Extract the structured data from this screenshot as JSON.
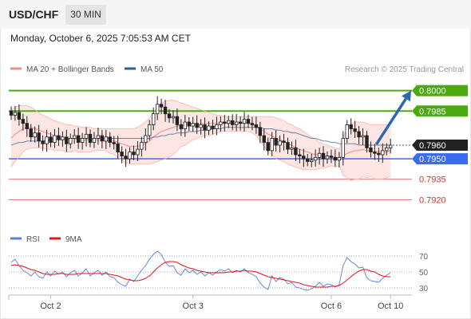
{
  "header": {
    "symbol": "USD/CHF",
    "timeframe": "30 MIN",
    "datetime": "Monday, October 6, 2025 7:05:53 AM CET"
  },
  "legend": {
    "bollinger_label": "MA 20 + Bollinger Bands",
    "ma50_label": "MA 50",
    "credit": "Research © 2025 Trading Central",
    "bollinger_color": "#f08c84",
    "ma50_color": "#2f5b93"
  },
  "rsi_legend": {
    "rsi_label": "RSI",
    "ma9_label": "9MA",
    "rsi_color": "#5b7fd6",
    "ma9_color": "#e0151d"
  },
  "chart_data": {
    "type": "candlestick",
    "ylim": [
      0.7905,
      0.8008
    ],
    "levels": [
      {
        "label": "0.8000",
        "value": 0.8,
        "kind": "target",
        "color": "#4caa10"
      },
      {
        "label": "0.7985",
        "value": 0.7985,
        "kind": "target",
        "color": "#4caa10"
      },
      {
        "label": "0.7960",
        "value": 0.796,
        "kind": "current",
        "color": "#222222"
      },
      {
        "label": "0.7950",
        "value": 0.795,
        "kind": "pivot",
        "color": "#3a6cf0"
      },
      {
        "label": "0.7935",
        "value": 0.7935,
        "kind": "support",
        "color": "#d83030"
      },
      {
        "label": "0.7920",
        "value": 0.792,
        "kind": "support",
        "color": "#d83030"
      }
    ],
    "x_ticks": [
      "Oct 2",
      "Oct 3",
      "Oct 6",
      "Oct 10"
    ],
    "x_tick_index": [
      10,
      46,
      81,
      96
    ],
    "forecast_arrow": {
      "from_index": 92,
      "from_value": 0.796,
      "to_index": 100,
      "to_value": 0.8
    },
    "closes": [
      0.7982,
      0.7984,
      0.7979,
      0.7976,
      0.7972,
      0.7966,
      0.7969,
      0.7963,
      0.7961,
      0.7966,
      0.7962,
      0.7967,
      0.7964,
      0.7966,
      0.7961,
      0.7965,
      0.7967,
      0.7962,
      0.7965,
      0.7968,
      0.7962,
      0.7965,
      0.7967,
      0.7963,
      0.7966,
      0.7962,
      0.7961,
      0.7955,
      0.7952,
      0.795,
      0.7955,
      0.7953,
      0.7957,
      0.7962,
      0.7967,
      0.7975,
      0.7983,
      0.799,
      0.7988,
      0.7983,
      0.798,
      0.7981,
      0.7975,
      0.7972,
      0.7977,
      0.7974,
      0.7976,
      0.7973,
      0.7975,
      0.7971,
      0.7974,
      0.7972,
      0.7975,
      0.7977,
      0.7976,
      0.7978,
      0.7975,
      0.7977,
      0.7976,
      0.7979,
      0.7976,
      0.7975,
      0.7973,
      0.7967,
      0.7962,
      0.7956,
      0.7965,
      0.796,
      0.7963,
      0.7962,
      0.7957,
      0.7958,
      0.7953,
      0.7952,
      0.795,
      0.7948,
      0.7949,
      0.7951,
      0.7954,
      0.795,
      0.7952,
      0.7951,
      0.7949,
      0.7951,
      0.7965,
      0.7975,
      0.7972,
      0.797,
      0.7966,
      0.7967,
      0.7958,
      0.7955,
      0.7954,
      0.7953,
      0.7956,
      0.7958,
      0.796
    ],
    "ma20": [
      0.7965,
      0.7968,
      0.797,
      0.7972,
      0.7973,
      0.7973,
      0.7972,
      0.7971,
      0.797,
      0.7969,
      0.7968,
      0.7967,
      0.7966,
      0.7966,
      0.7965,
      0.7965,
      0.7965,
      0.7964,
      0.7964,
      0.7964,
      0.7964,
      0.7964,
      0.7964,
      0.7964,
      0.7964,
      0.7963,
      0.7963,
      0.7962,
      0.7961,
      0.796,
      0.7959,
      0.7959,
      0.7959,
      0.796,
      0.7961,
      0.7963,
      0.7966,
      0.7968,
      0.797,
      0.7971,
      0.7972,
      0.7973,
      0.7974,
      0.7975,
      0.7975,
      0.7976,
      0.7976,
      0.7976,
      0.7976,
      0.7976,
      0.7976,
      0.7976,
      0.7976,
      0.7976,
      0.7976,
      0.7976,
      0.7976,
      0.7976,
      0.7976,
      0.7976,
      0.7976,
      0.7975,
      0.7974,
      0.7972,
      0.797,
      0.7968,
      0.7967,
      0.7965,
      0.7964,
      0.7963,
      0.7961,
      0.796,
      0.7958,
      0.7957,
      0.7956,
      0.7955,
      0.7954,
      0.7953,
      0.7953,
      0.7952,
      0.7952,
      0.7952,
      0.7951,
      0.7951,
      0.7952,
      0.7954,
      0.7955,
      0.7956,
      0.7956,
      0.7957,
      0.7956,
      0.7956,
      0.7955,
      0.7955,
      0.7955,
      0.7955,
      0.7956
    ],
    "ma50": [
      0.796,
      0.7961,
      0.7962,
      0.7962,
      0.7963,
      0.7963,
      0.7963,
      0.7963,
      0.7963,
      0.7964,
      0.7964,
      0.7964,
      0.7964,
      0.7964,
      0.7964,
      0.7965,
      0.7965,
      0.7965,
      0.7965,
      0.7965,
      0.7965,
      0.7965,
      0.7965,
      0.7965,
      0.7965,
      0.7965,
      0.7965,
      0.7965,
      0.7965,
      0.7965,
      0.7965,
      0.7965,
      0.7965,
      0.7965,
      0.7965,
      0.7965,
      0.7966,
      0.7966,
      0.7967,
      0.7967,
      0.7968,
      0.7968,
      0.7969,
      0.7969,
      0.7969,
      0.797,
      0.797,
      0.797,
      0.7971,
      0.7971,
      0.7971,
      0.7972,
      0.7972,
      0.7972,
      0.7973,
      0.7973,
      0.7973,
      0.7973,
      0.7973,
      0.7973,
      0.7973,
      0.7973,
      0.7973,
      0.7973,
      0.7972,
      0.7972,
      0.7972,
      0.7971,
      0.7971,
      0.797,
      0.797,
      0.7969,
      0.7969,
      0.7968,
      0.7967,
      0.7966,
      0.7965,
      0.7965,
      0.7964,
      0.7963,
      0.7963,
      0.7962,
      0.7962,
      0.7961,
      0.7961,
      0.7961,
      0.7961,
      0.7961,
      0.796,
      0.796,
      0.796,
      0.796,
      0.796,
      0.796,
      0.796,
      0.796,
      0.796
    ],
    "bb_upper": [
      0.7986,
      0.7988,
      0.7989,
      0.7989,
      0.7989,
      0.7988,
      0.7986,
      0.7984,
      0.7982,
      0.7981,
      0.7979,
      0.7978,
      0.7977,
      0.7976,
      0.7975,
      0.7975,
      0.7974,
      0.7974,
      0.7973,
      0.7973,
      0.7973,
      0.7972,
      0.7972,
      0.7972,
      0.7972,
      0.7972,
      0.7972,
      0.7972,
      0.7972,
      0.7972,
      0.7972,
      0.7972,
      0.7973,
      0.7975,
      0.7977,
      0.798,
      0.7984,
      0.7988,
      0.7991,
      0.7992,
      0.7993,
      0.7993,
      0.7992,
      0.7991,
      0.799,
      0.7989,
      0.7988,
      0.7987,
      0.7986,
      0.7985,
      0.7984,
      0.7983,
      0.7982,
      0.7982,
      0.7981,
      0.7981,
      0.7981,
      0.7981,
      0.7981,
      0.7981,
      0.7981,
      0.7981,
      0.7981,
      0.7981,
      0.7981,
      0.7981,
      0.7981,
      0.798,
      0.7979,
      0.7978,
      0.7976,
      0.7975,
      0.7973,
      0.7972,
      0.797,
      0.7968,
      0.7966,
      0.7964,
      0.7962,
      0.7961,
      0.796,
      0.7959,
      0.7958,
      0.7957,
      0.7966,
      0.7972,
      0.7976,
      0.7977,
      0.7977,
      0.7977,
      0.7976,
      0.7975,
      0.7975,
      0.7975,
      0.7975,
      0.7975,
      0.7975
    ],
    "bb_lower": [
      0.7944,
      0.7948,
      0.7951,
      0.7955,
      0.7957,
      0.7958,
      0.7958,
      0.7958,
      0.7958,
      0.7957,
      0.7957,
      0.7956,
      0.7956,
      0.7956,
      0.7955,
      0.7955,
      0.7956,
      0.7955,
      0.7955,
      0.7955,
      0.7955,
      0.7956,
      0.7956,
      0.7956,
      0.7956,
      0.7954,
      0.7953,
      0.7951,
      0.7949,
      0.7947,
      0.7946,
      0.7946,
      0.7946,
      0.7946,
      0.7946,
      0.7946,
      0.7947,
      0.7948,
      0.7949,
      0.795,
      0.7951,
      0.7953,
      0.7956,
      0.7959,
      0.796,
      0.7962,
      0.7964,
      0.7965,
      0.7966,
      0.7967,
      0.7967,
      0.7968,
      0.7969,
      0.797,
      0.797,
      0.797,
      0.797,
      0.797,
      0.797,
      0.797,
      0.797,
      0.7969,
      0.7967,
      0.7963,
      0.7959,
      0.7955,
      0.7953,
      0.795,
      0.7949,
      0.7948,
      0.7946,
      0.7945,
      0.7944,
      0.7943,
      0.7942,
      0.7942,
      0.7942,
      0.7942,
      0.7943,
      0.7943,
      0.7944,
      0.7945,
      0.7944,
      0.7945,
      0.7938,
      0.7936,
      0.7934,
      0.7935,
      0.7935,
      0.7937,
      0.7936,
      0.7937,
      0.7935,
      0.7935,
      0.7935,
      0.7936,
      0.7937
    ]
  },
  "rsi_data": {
    "ylim": [
      25,
      78
    ],
    "ticks": [
      "70",
      "50",
      "30"
    ],
    "tick_values": [
      70,
      50,
      30
    ],
    "rsi": [
      62,
      66,
      58,
      52,
      49,
      45,
      50,
      44,
      42,
      50,
      45,
      51,
      47,
      50,
      44,
      49,
      52,
      45,
      49,
      54,
      45,
      49,
      52,
      46,
      50,
      44,
      43,
      37,
      34,
      32,
      41,
      38,
      45,
      52,
      58,
      66,
      72,
      76,
      72,
      62,
      57,
      58,
      49,
      46,
      54,
      49,
      52,
      47,
      50,
      45,
      49,
      46,
      50,
      53,
      51,
      54,
      49,
      52,
      50,
      54,
      49,
      47,
      44,
      36,
      31,
      28,
      45,
      38,
      43,
      41,
      35,
      37,
      31,
      30,
      28,
      27,
      29,
      32,
      37,
      32,
      35,
      34,
      31,
      34,
      58,
      68,
      63,
      60,
      55,
      56,
      43,
      39,
      38,
      37,
      42,
      46,
      49
    ],
    "ma9": [
      58,
      59,
      58,
      57,
      55,
      53,
      52,
      50,
      48,
      47,
      47,
      47,
      48,
      48,
      47,
      47,
      47,
      48,
      48,
      48,
      48,
      48,
      48,
      48,
      48,
      47,
      46,
      45,
      43,
      41,
      40,
      39,
      39,
      40,
      42,
      45,
      50,
      55,
      59,
      62,
      63,
      63,
      62,
      59,
      57,
      55,
      54,
      52,
      51,
      50,
      49,
      49,
      49,
      49,
      49,
      50,
      50,
      51,
      51,
      52,
      51,
      51,
      50,
      48,
      46,
      44,
      43,
      42,
      41,
      40,
      39,
      38,
      37,
      36,
      34,
      33,
      32,
      31,
      31,
      31,
      31,
      32,
      32,
      33,
      36,
      40,
      44,
      48,
      51,
      53,
      53,
      51,
      50,
      47,
      45,
      44,
      44
    ]
  }
}
